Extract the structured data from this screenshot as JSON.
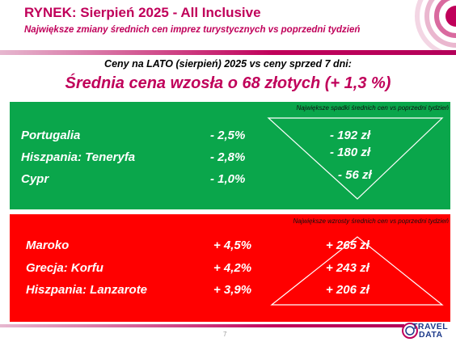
{
  "header": {
    "title": "RYNEK: Sierpień 2025 - All Inclusive",
    "subtitle": "Największe zmiany średnich cen imprez turystycznych vs poprzedni tydzień"
  },
  "summary": {
    "compare_line": "Ceny na LATO (sierpień) 2025 vs ceny sprzed 7 dni:",
    "headline": "Średnia cena wzosła o 68 złotych (+ 1,3 %)"
  },
  "decreases": {
    "caption": "Największe spadki średnich cen vs poprzedni tydzień",
    "rows": [
      {
        "name": "Portugalia",
        "pct": "- 2,5%",
        "amount": "- 192 zł"
      },
      {
        "name": "Hiszpania: Teneryfa",
        "pct": "- 2,8%",
        "amount": "- 180 zł"
      },
      {
        "name": "Cypr",
        "pct": "- 1,0%",
        "amount": "- 56 zł"
      }
    ]
  },
  "increases": {
    "caption": "Największe wzrosty średnich cen vs poprzedni tydzień",
    "rows": [
      {
        "name": "Maroko",
        "pct": "+ 4,5%",
        "amount": "+ 265 zł"
      },
      {
        "name": "Grecja: Korfu",
        "pct": "+ 4,2%",
        "amount": "+ 243 zł"
      },
      {
        "name": "Hiszpania: Lanzarote",
        "pct": "+ 3,9%",
        "amount": "+ 206 zł"
      }
    ]
  },
  "footer": {
    "page_number": "7",
    "logo_travel": "TRAVEL",
    "logo_data": "DATA"
  },
  "colors": {
    "accent": "#c0005a",
    "green_panel": "#0aa64b",
    "red_panel": "#ff0000"
  },
  "icons": [
    "concentric-circles-decoration-icon",
    "triangle-down-icon",
    "triangle-up-icon",
    "travel-data-logo-icon"
  ]
}
